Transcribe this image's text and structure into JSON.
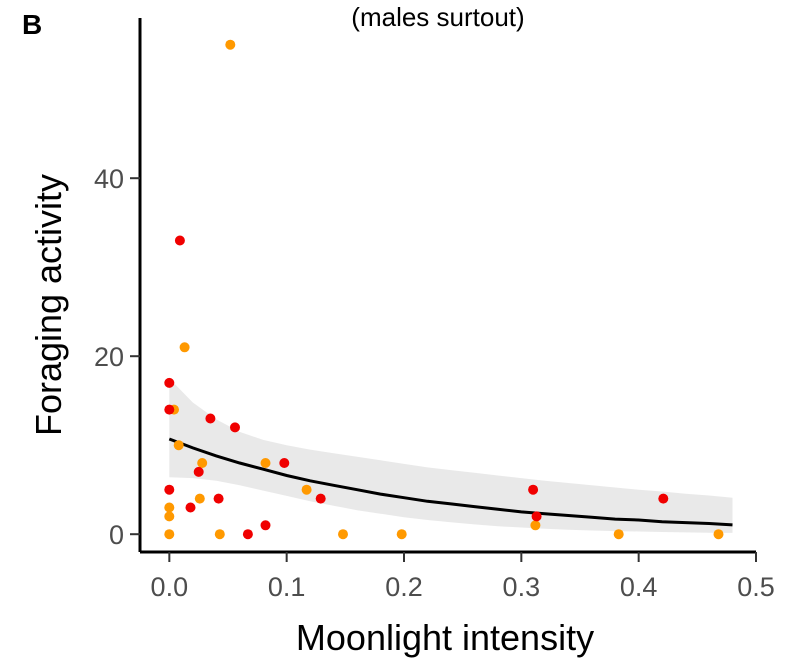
{
  "panel_label": "B",
  "colors": {
    "red": "#f00000",
    "orange": "#ff9900",
    "fit_line": "#000000",
    "ribbon": "#e3e3e3"
  },
  "chart_data": {
    "type": "scatter",
    "subtitle": "(males surtout)",
    "xlabel": "Moonlight intensity",
    "ylabel": "Foraging activity",
    "xlim": [
      -0.025,
      0.5
    ],
    "ylim": [
      -2,
      58
    ],
    "x_ticks": [
      0.0,
      0.1,
      0.2,
      0.3,
      0.4,
      0.5
    ],
    "x_tick_labels": [
      "0.0",
      "0.1",
      "0.2",
      "0.3",
      "0.4",
      "0.5"
    ],
    "y_ticks": [
      0,
      20,
      40
    ],
    "y_tick_labels": [
      "0",
      "20",
      "40"
    ],
    "grid": false,
    "series": [
      {
        "color": "#ff9900",
        "points": [
          [
            0.052,
            55
          ],
          [
            0.013,
            21
          ],
          [
            0.004,
            14
          ],
          [
            0.008,
            10
          ],
          [
            0.028,
            8
          ],
          [
            0.082,
            8
          ],
          [
            0.117,
            5
          ],
          [
            0.026,
            4
          ],
          [
            0.0,
            3
          ],
          [
            0.0,
            2
          ],
          [
            0.0,
            0
          ],
          [
            0.043,
            0
          ],
          [
            0.148,
            0
          ],
          [
            0.198,
            0
          ],
          [
            0.312,
            1
          ],
          [
            0.383,
            0
          ],
          [
            0.468,
            0
          ]
        ]
      },
      {
        "color": "#f00000",
        "points": [
          [
            0.009,
            33
          ],
          [
            0.0,
            17
          ],
          [
            0.0,
            14
          ],
          [
            0.035,
            13
          ],
          [
            0.056,
            12
          ],
          [
            0.098,
            8
          ],
          [
            0.025,
            7
          ],
          [
            0.0,
            5
          ],
          [
            0.042,
            4
          ],
          [
            0.129,
            4
          ],
          [
            0.018,
            3
          ],
          [
            0.082,
            1
          ],
          [
            0.067,
            0
          ],
          [
            0.31,
            5
          ],
          [
            0.313,
            2
          ],
          [
            0.421,
            4
          ]
        ]
      }
    ],
    "fit": {
      "x": [
        0.0,
        0.02,
        0.04,
        0.06,
        0.08,
        0.1,
        0.12,
        0.14,
        0.16,
        0.18,
        0.2,
        0.22,
        0.24,
        0.26,
        0.28,
        0.3,
        0.32,
        0.34,
        0.36,
        0.38,
        0.4,
        0.42,
        0.44,
        0.46,
        0.48
      ],
      "y": [
        10.7,
        9.7,
        8.8,
        8.0,
        7.3,
        6.6,
        6.0,
        5.5,
        5.0,
        4.5,
        4.1,
        3.7,
        3.4,
        3.1,
        2.8,
        2.5,
        2.3,
        2.1,
        1.9,
        1.7,
        1.6,
        1.4,
        1.3,
        1.2,
        1.05
      ],
      "lower": [
        6.4,
        6.3,
        6.0,
        5.5,
        4.9,
        4.3,
        3.7,
        3.2,
        2.7,
        2.3,
        1.9,
        1.6,
        1.35,
        1.1,
        0.9,
        0.75,
        0.62,
        0.5,
        0.42,
        0.35,
        0.3,
        0.25,
        0.2,
        0.17,
        0.15
      ],
      "upper": [
        17.5,
        14.8,
        12.9,
        11.5,
        10.6,
        10.0,
        9.5,
        9.1,
        8.7,
        8.3,
        7.9,
        7.5,
        7.2,
        6.9,
        6.6,
        6.3,
        6.0,
        5.75,
        5.5,
        5.25,
        5.0,
        4.8,
        4.55,
        4.35,
        4.1
      ]
    }
  }
}
